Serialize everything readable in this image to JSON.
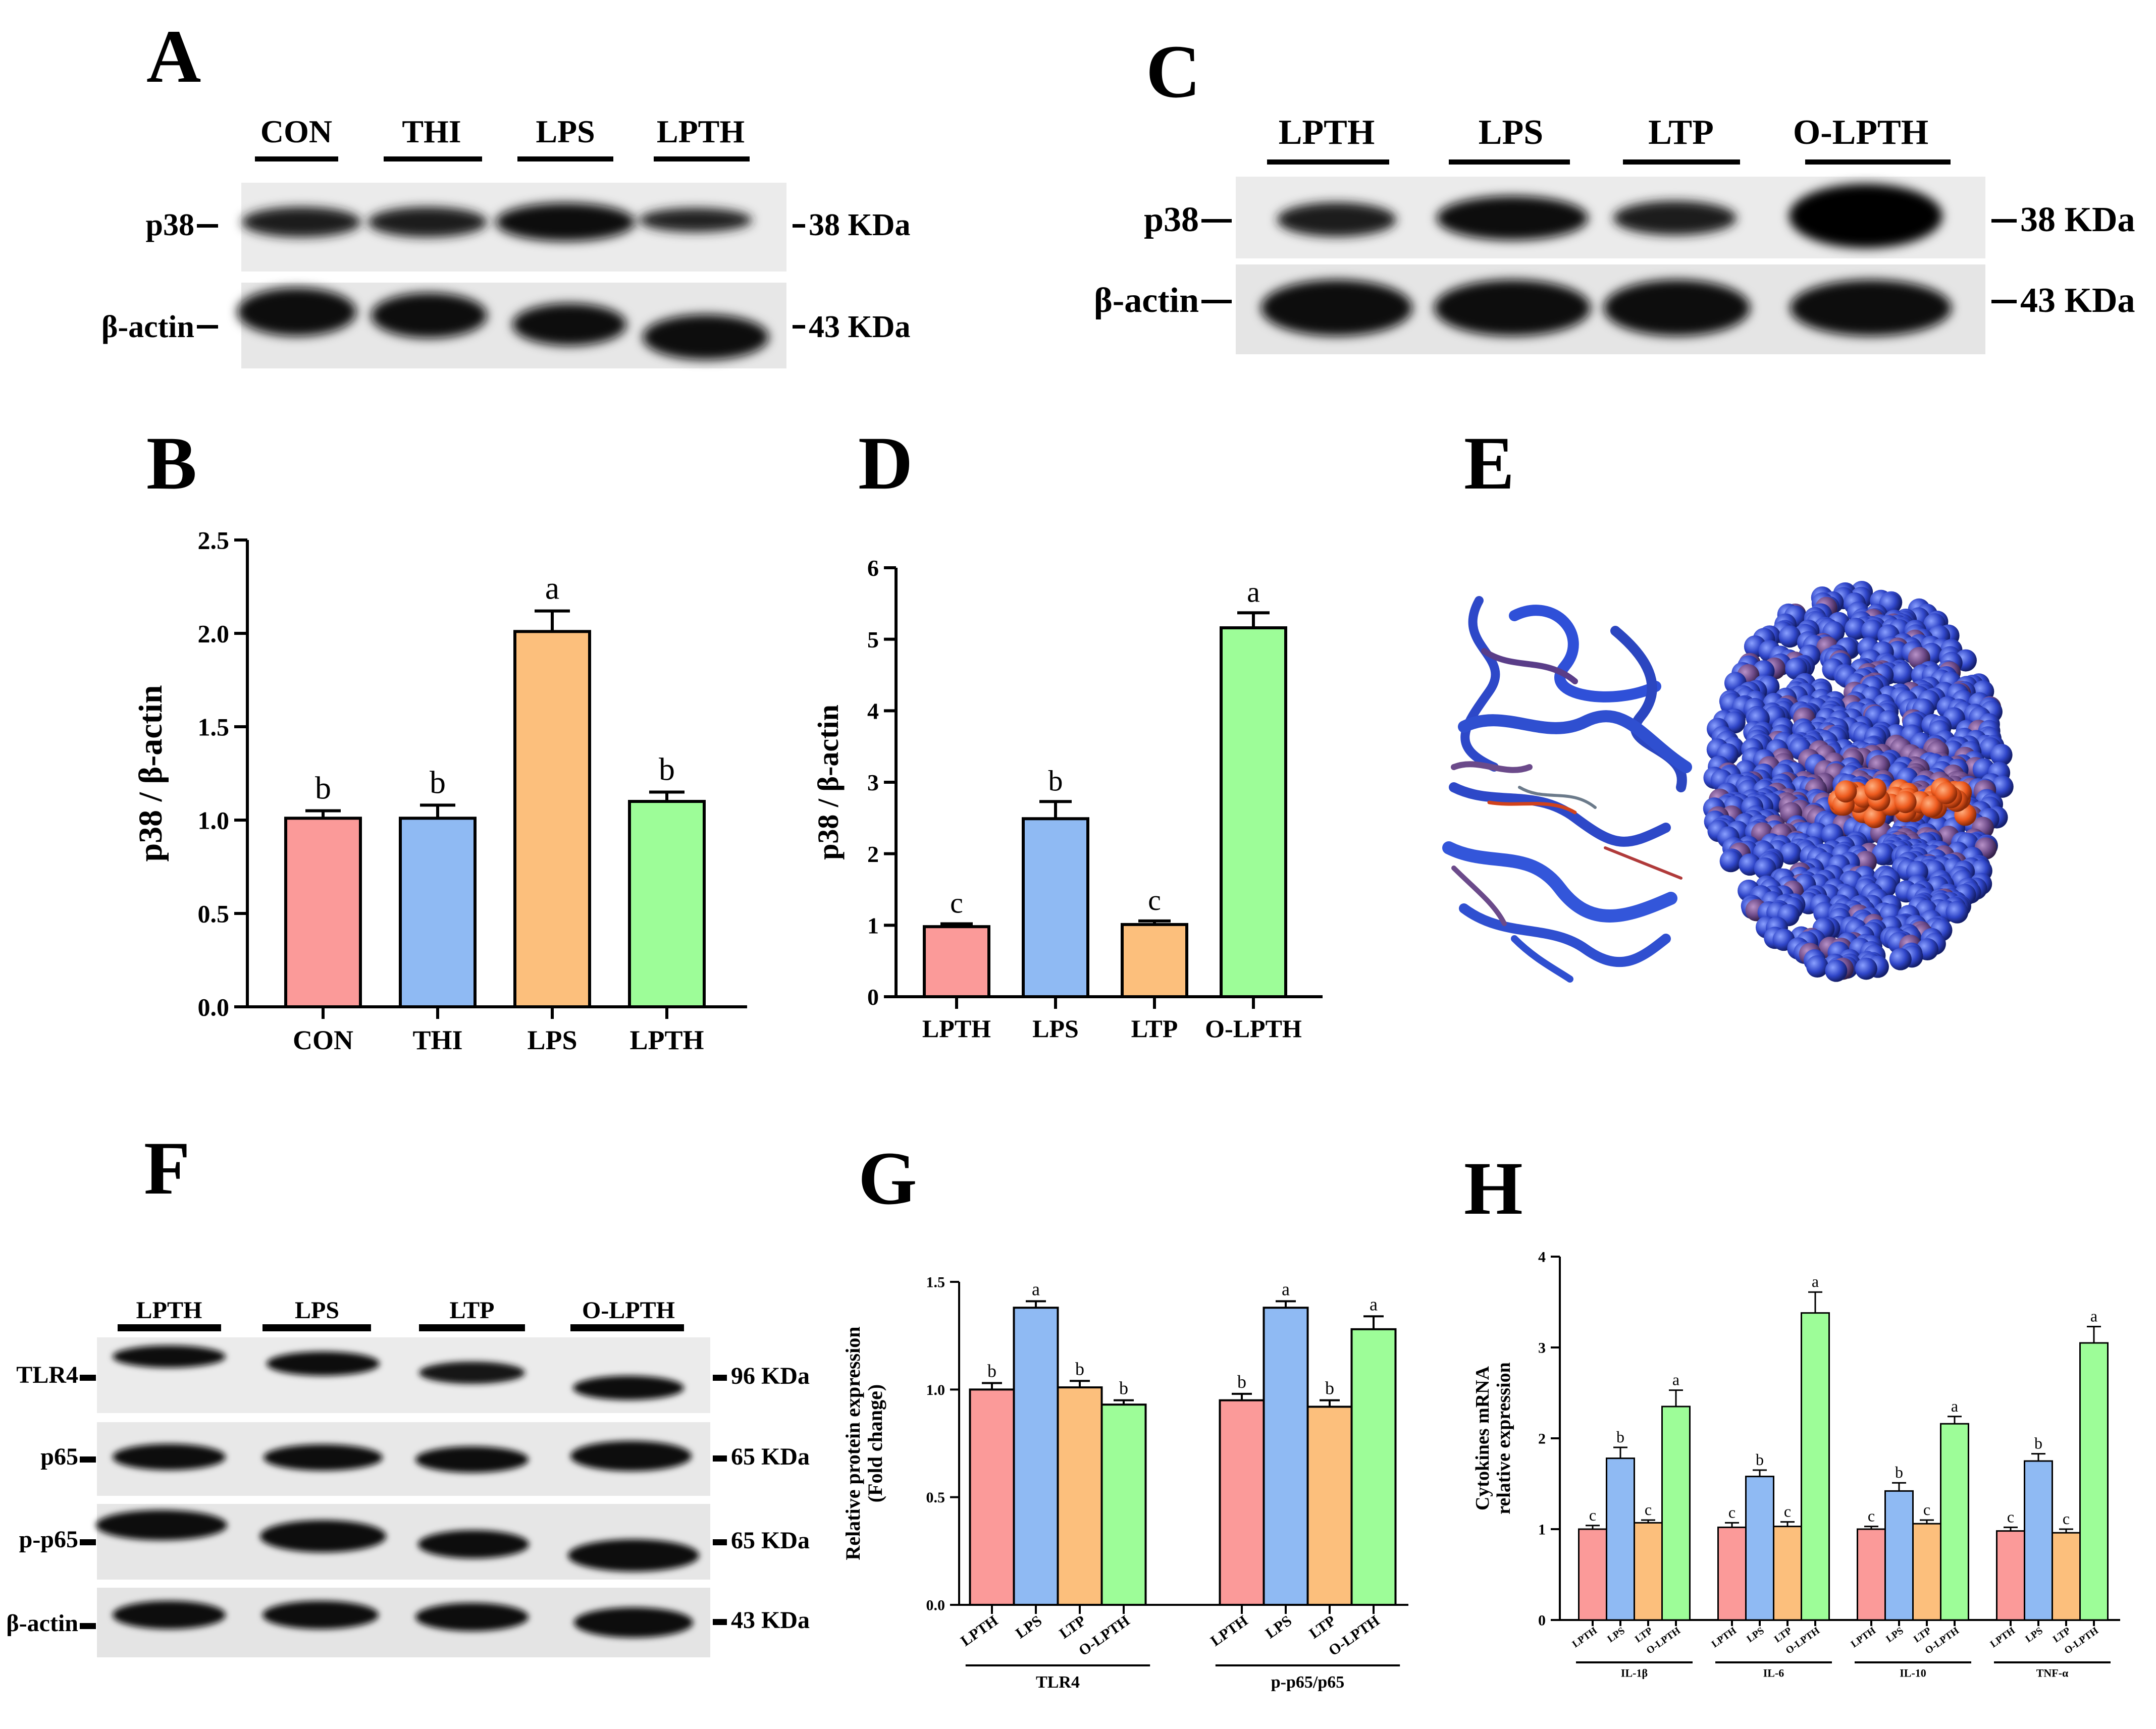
{
  "colors": {
    "pink": "#fb9a99",
    "blue": "#8fbaf3",
    "orange": "#fcbf7c",
    "green": "#9dfd98",
    "protein_main": "#2f4fd0",
    "protein_purple": "#6b4a8a",
    "ligand": "#e8501c"
  },
  "panel_letters": [
    "A",
    "B",
    "C",
    "D",
    "E",
    "F",
    "G",
    "H"
  ],
  "blot_A": {
    "lanes": [
      "CON",
      "THI",
      "LPS",
      "LPTH"
    ],
    "rows": [
      {
        "label": "p38",
        "size": "38 KDa"
      },
      {
        "label": "β-actin",
        "size": "43 KDa"
      }
    ]
  },
  "blot_C": {
    "lanes": [
      "LPTH",
      "LPS",
      "LTP",
      "O-LPTH"
    ],
    "rows": [
      {
        "label": "p38",
        "size": "38 KDa"
      },
      {
        "label": "β-actin",
        "size": "43 KDa"
      }
    ]
  },
  "blot_F": {
    "lanes": [
      "LPTH",
      "LPS",
      "LTP",
      "O-LPTH"
    ],
    "rows": [
      {
        "label": "TLR4",
        "size": "96 KDa"
      },
      {
        "label": "p65",
        "size": "65 KDa"
      },
      {
        "label": "p-p65",
        "size": "65 KDa"
      },
      {
        "label": "β-actin",
        "size": "43 KDa"
      }
    ]
  },
  "chart_data": [
    {
      "panel": "B",
      "type": "bar",
      "categories": [
        "CON",
        "THI",
        "LPS",
        "LPTH"
      ],
      "values": [
        1.01,
        1.01,
        2.01,
        1.1
      ],
      "errors": [
        0.04,
        0.07,
        0.11,
        0.05
      ],
      "sig_letters": [
        "b",
        "b",
        "a",
        "b"
      ],
      "ylabel": "p38 / β-actin",
      "ylim": [
        0,
        2.5
      ],
      "yticks": [
        "0.0",
        "0.5",
        "1.0",
        "1.5",
        "2.0",
        "2.5"
      ]
    },
    {
      "panel": "D",
      "type": "bar",
      "categories": [
        "LPTH",
        "LPS",
        "LTP",
        "O-LPTH"
      ],
      "values": [
        0.98,
        2.49,
        1.01,
        5.16
      ],
      "errors": [
        0.04,
        0.24,
        0.05,
        0.21
      ],
      "sig_letters": [
        "c",
        "b",
        "c",
        "a"
      ],
      "ylabel": "p38 / β-actin",
      "ylim": [
        0,
        6
      ],
      "yticks": [
        "0",
        "1",
        "2",
        "3",
        "4",
        "5",
        "6"
      ]
    },
    {
      "panel": "G",
      "type": "bar",
      "groups": [
        "TLR4",
        "p-p65/p65"
      ],
      "categories": [
        "LPTH",
        "LPS",
        "LTP",
        "O-LPTH"
      ],
      "series_values": [
        [
          1.0,
          1.38,
          1.01,
          0.93
        ],
        [
          0.95,
          1.38,
          0.92,
          1.28
        ]
      ],
      "errors": [
        [
          0.03,
          0.03,
          0.03,
          0.02
        ],
        [
          0.03,
          0.03,
          0.03,
          0.06
        ]
      ],
      "sig_letters": [
        [
          "b",
          "a",
          "b",
          "b"
        ],
        [
          "b",
          "a",
          "b",
          "a"
        ]
      ],
      "ylabel": "Relative protein expression\n(Fold change)",
      "ylim": [
        0,
        1.5
      ],
      "yticks": [
        "0.0",
        "0.5",
        "1.0",
        "1.5"
      ]
    },
    {
      "panel": "H",
      "type": "bar",
      "groups": [
        "IL-1β",
        "IL-6",
        "IL-10",
        "TNF-α"
      ],
      "categories": [
        "LPTH",
        "LPS",
        "LTP",
        "O-LPTH"
      ],
      "series_values": [
        [
          1.0,
          1.78,
          1.07,
          2.35
        ],
        [
          1.02,
          1.58,
          1.03,
          3.38
        ],
        [
          1.0,
          1.42,
          1.06,
          2.16
        ],
        [
          0.98,
          1.75,
          0.96,
          3.05
        ]
      ],
      "errors": [
        [
          0.04,
          0.12,
          0.03,
          0.18
        ],
        [
          0.05,
          0.07,
          0.05,
          0.23
        ],
        [
          0.03,
          0.09,
          0.04,
          0.08
        ],
        [
          0.04,
          0.08,
          0.04,
          0.18
        ]
      ],
      "sig_letters": [
        [
          "c",
          "b",
          "c",
          "a"
        ],
        [
          "c",
          "b",
          "c",
          "a"
        ],
        [
          "c",
          "b",
          "c",
          "a"
        ],
        [
          "c",
          "b",
          "c",
          "a"
        ]
      ],
      "ylabel": "Cytokines mRNA\nrelative expression",
      "ylim": [
        0,
        4
      ],
      "yticks": [
        "0",
        "1",
        "2",
        "3",
        "4"
      ]
    }
  ]
}
